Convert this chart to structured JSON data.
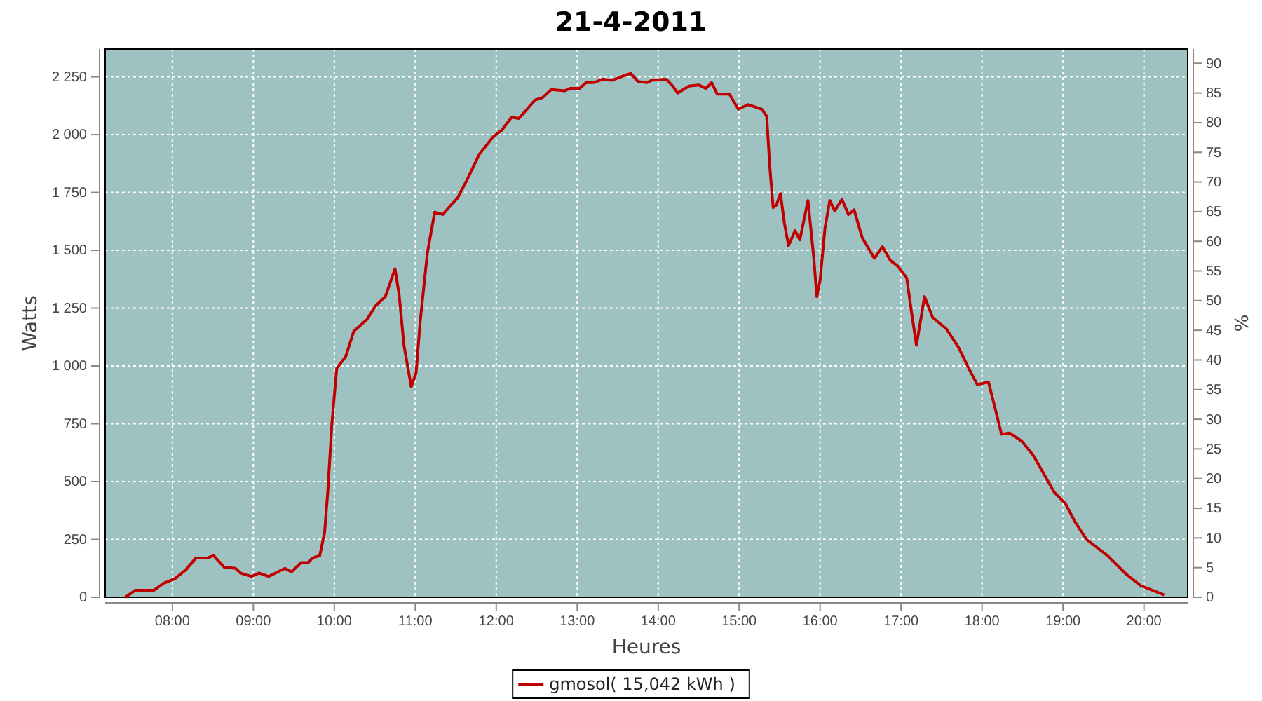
{
  "chart_data": {
    "type": "line",
    "title": "21-4-2011",
    "xlabel": "Heures",
    "ylabel": "Watts",
    "y2label": "%",
    "xlim": [
      7.17,
      20.54
    ],
    "xticks": [
      {
        "value": 8,
        "label": "08:00"
      },
      {
        "value": 9,
        "label": "09:00"
      },
      {
        "value": 10,
        "label": "10:00"
      },
      {
        "value": 11,
        "label": "11:00"
      },
      {
        "value": 12,
        "label": "12:00"
      },
      {
        "value": 13,
        "label": "13:00"
      },
      {
        "value": 14,
        "label": "14:00"
      },
      {
        "value": 15,
        "label": "15:00"
      },
      {
        "value": 16,
        "label": "16:00"
      },
      {
        "value": 17,
        "label": "17:00"
      },
      {
        "value": 18,
        "label": "18:00"
      },
      {
        "value": 19,
        "label": "19:00"
      },
      {
        "value": 20,
        "label": "20:00"
      }
    ],
    "ylim": [
      0,
      2370
    ],
    "yticks": [
      0,
      250,
      500,
      750,
      {
        "value": 1000,
        "label": "1 000"
      },
      {
        "value": 1250,
        "label": "1 250"
      },
      {
        "value": 1500,
        "label": "1 500"
      },
      {
        "value": 1750,
        "label": "1 750"
      },
      {
        "value": 2000,
        "label": "2 000"
      },
      {
        "value": 2250,
        "label": "2 250"
      }
    ],
    "y2lim": [
      0,
      92.4
    ],
    "y2ticks": [
      0,
      5,
      10,
      15,
      20,
      25,
      30,
      35,
      40,
      45,
      50,
      55,
      60,
      65,
      70,
      75,
      80,
      85,
      90
    ],
    "grid": true,
    "legend": "bottom",
    "marker": "none",
    "line_style": "solid",
    "series": [
      {
        "name": "gmosol( 15,042 kWh )",
        "color": "#c00000",
        "x": [
          7.42,
          7.54,
          7.77,
          7.89,
          8.03,
          8.17,
          8.29,
          8.43,
          8.51,
          8.64,
          8.78,
          8.84,
          8.98,
          9.07,
          9.19,
          9.39,
          9.47,
          9.59,
          9.68,
          9.73,
          9.82,
          9.88,
          9.92,
          9.97,
          10.0,
          10.03,
          10.14,
          10.24,
          10.4,
          10.51,
          10.63,
          10.69,
          10.75,
          10.8,
          10.86,
          10.95,
          11.01,
          11.06,
          11.15,
          11.24,
          11.34,
          11.44,
          11.52,
          11.64,
          11.79,
          11.96,
          12.07,
          12.19,
          12.28,
          12.48,
          12.57,
          12.68,
          12.85,
          12.91,
          13.03,
          13.11,
          13.2,
          13.32,
          13.43,
          13.58,
          13.66,
          13.75,
          13.86,
          13.92,
          14.1,
          14.18,
          14.24,
          14.38,
          14.5,
          14.59,
          14.66,
          14.73,
          14.88,
          14.99,
          15.11,
          15.28,
          15.34,
          15.38,
          15.42,
          15.46,
          15.51,
          15.56,
          15.61,
          15.69,
          15.75,
          15.85,
          15.92,
          15.96,
          16.0,
          16.06,
          16.12,
          16.18,
          16.27,
          16.35,
          16.42,
          16.52,
          16.67,
          16.77,
          16.87,
          16.95,
          17.07,
          17.13,
          17.19,
          17.29,
          17.39,
          17.56,
          17.71,
          17.85,
          17.94,
          18.08,
          18.17,
          18.24,
          18.34,
          18.49,
          18.63,
          18.89,
          19.03,
          19.15,
          19.29,
          19.55,
          19.78,
          19.96,
          20.25
        ],
        "values": [
          0,
          30,
          30,
          60,
          80,
          120,
          170,
          170,
          180,
          130,
          125,
          105,
          90,
          105,
          90,
          125,
          110,
          150,
          150,
          170,
          180,
          280,
          460,
          750,
          870,
          990,
          1040,
          1150,
          1200,
          1260,
          1300,
          1360,
          1420,
          1310,
          1090,
          910,
          970,
          1190,
          1490,
          1665,
          1655,
          1695,
          1725,
          1805,
          1915,
          1990,
          2020,
          2075,
          2070,
          2150,
          2160,
          2195,
          2190,
          2200,
          2200,
          2225,
          2225,
          2240,
          2235,
          2255,
          2265,
          2230,
          2225,
          2235,
          2240,
          2210,
          2180,
          2210,
          2215,
          2200,
          2225,
          2175,
          2175,
          2110,
          2130,
          2110,
          2080,
          1855,
          1685,
          1695,
          1745,
          1615,
          1520,
          1585,
          1545,
          1715,
          1475,
          1300,
          1370,
          1595,
          1715,
          1670,
          1720,
          1655,
          1675,
          1555,
          1465,
          1515,
          1455,
          1435,
          1380,
          1230,
          1090,
          1300,
          1210,
          1160,
          1080,
          980,
          920,
          930,
          805,
          705,
          710,
          675,
          615,
          455,
          405,
          325,
          250,
          180,
          100,
          50,
          10
        ]
      }
    ]
  }
}
